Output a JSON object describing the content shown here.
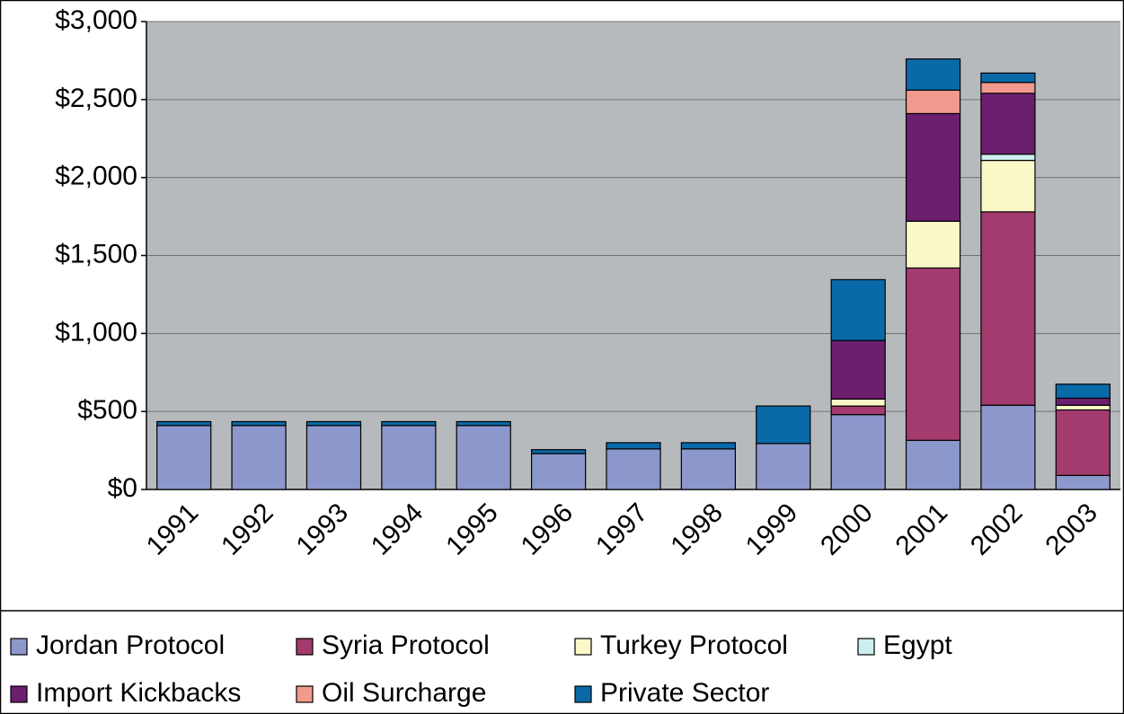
{
  "chart_data": {
    "type": "bar",
    "stacked": true,
    "categories": [
      "1991",
      "1992",
      "1993",
      "1994",
      "1995",
      "1996",
      "1997",
      "1998",
      "1999",
      "2000",
      "2001",
      "2002",
      "2003"
    ],
    "series": [
      {
        "name": "Jordan Protocol",
        "color": "#8c98cc",
        "values": [
          410,
          410,
          410,
          410,
          410,
          230,
          260,
          260,
          295,
          480,
          315,
          540,
          90
        ]
      },
      {
        "name": "Syria Protocol",
        "color": "#a33b6e",
        "values": [
          0,
          0,
          0,
          0,
          0,
          0,
          0,
          0,
          0,
          55,
          1105,
          1240,
          420
        ]
      },
      {
        "name": "Turkey Protocol",
        "color": "#fbf8c8",
        "values": [
          0,
          0,
          0,
          0,
          0,
          0,
          0,
          0,
          0,
          45,
          300,
          330,
          30
        ]
      },
      {
        "name": "Egypt",
        "color": "#cdeef0",
        "values": [
          0,
          0,
          0,
          0,
          0,
          0,
          0,
          0,
          0,
          0,
          0,
          40,
          0
        ]
      },
      {
        "name": "Import Kickbacks",
        "color": "#6b1f6e",
        "values": [
          0,
          0,
          0,
          0,
          0,
          0,
          0,
          0,
          0,
          375,
          690,
          390,
          45
        ]
      },
      {
        "name": "Oil Surcharge",
        "color": "#f29a8e",
        "values": [
          0,
          0,
          0,
          0,
          0,
          0,
          0,
          0,
          0,
          0,
          150,
          70,
          0
        ]
      },
      {
        "name": "Private Sector",
        "color": "#0a6aa8",
        "values": [
          25,
          25,
          25,
          25,
          25,
          25,
          40,
          40,
          240,
          390,
          200,
          60,
          90
        ]
      }
    ],
    "ylim": [
      0,
      3000
    ],
    "yticks": [
      {
        "value": 0,
        "label": "$0"
      },
      {
        "value": 500,
        "label": "$500"
      },
      {
        "value": 1000,
        "label": "$1,000"
      },
      {
        "value": 1500,
        "label": "$1,500"
      },
      {
        "value": 2000,
        "label": "$2,000"
      },
      {
        "value": 2500,
        "label": "$2,500"
      },
      {
        "value": 3000,
        "label": "$3,000"
      }
    ],
    "grid": true,
    "plot_background": "#b6babc",
    "legend": "bottom"
  }
}
